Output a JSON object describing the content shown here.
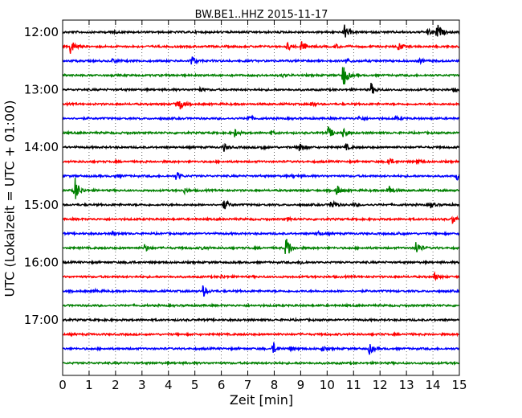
{
  "chart_data": {
    "type": "line",
    "title": "BW.BE1..HHZ 2015-11-17",
    "xlabel": "Zeit  [min]",
    "ylabel": "UTC (Lokalzeit = UTC + 01:00)",
    "xlim": [
      0,
      15
    ],
    "x_ticks": [
      "0",
      "1",
      "2",
      "3",
      "4",
      "5",
      "6",
      "7",
      "8",
      "9",
      "10",
      "11",
      "12",
      "13",
      "14",
      "15"
    ],
    "y_ticks": [
      "12:00",
      "13:00",
      "14:00",
      "15:00",
      "16:00",
      "17:00"
    ],
    "grid": "vertical dotted",
    "row_interval_min": 15,
    "colors": [
      "#000000",
      "#ff0000",
      "#0000ff",
      "#008000"
    ],
    "series": [
      {
        "start": "12:00",
        "color": "#000000",
        "events": [
          {
            "t": 10.65,
            "amp": 10
          },
          {
            "t": 14.15,
            "amp": 12
          },
          {
            "t": 13.8,
            "amp": 4
          },
          {
            "t": 1.8,
            "amp": 2
          }
        ]
      },
      {
        "start": "12:15",
        "color": "#ff0000",
        "events": [
          {
            "t": 0.3,
            "amp": 11
          },
          {
            "t": 9.0,
            "amp": 9
          },
          {
            "t": 8.5,
            "amp": 5
          },
          {
            "t": 12.7,
            "amp": 6
          },
          {
            "t": 10.3,
            "amp": 3
          }
        ]
      },
      {
        "start": "12:30",
        "color": "#0000ff",
        "events": [
          {
            "t": 4.85,
            "amp": 8
          },
          {
            "t": 1.9,
            "amp": 4
          },
          {
            "t": 10.7,
            "amp": 4
          },
          {
            "t": 13.5,
            "amp": 3
          }
        ]
      },
      {
        "start": "12:45",
        "color": "#008000",
        "events": [
          {
            "t": 10.6,
            "amp": 18
          },
          {
            "t": 8.3,
            "amp": 2
          }
        ]
      },
      {
        "start": "13:00",
        "color": "#000000",
        "events": [
          {
            "t": 11.65,
            "amp": 9
          },
          {
            "t": 5.2,
            "amp": 2
          },
          {
            "t": 14.8,
            "amp": 3
          }
        ]
      },
      {
        "start": "13:15",
        "color": "#ff0000",
        "events": [
          {
            "t": 4.25,
            "amp": 7
          },
          {
            "t": 4.45,
            "amp": 6
          },
          {
            "t": 9.4,
            "amp": 3
          }
        ]
      },
      {
        "start": "13:30",
        "color": "#0000ff",
        "events": [
          {
            "t": 7.0,
            "amp": 4
          },
          {
            "t": 11.2,
            "amp": 3
          },
          {
            "t": 12.6,
            "amp": 2
          }
        ]
      },
      {
        "start": "13:45",
        "color": "#008000",
        "events": [
          {
            "t": 10.05,
            "amp": 8
          },
          {
            "t": 6.5,
            "amp": 5
          },
          {
            "t": 10.6,
            "amp": 6
          },
          {
            "t": 7.9,
            "amp": 2
          }
        ]
      },
      {
        "start": "14:00",
        "color": "#000000",
        "events": [
          {
            "t": 8.95,
            "amp": 9
          },
          {
            "t": 6.1,
            "amp": 5
          },
          {
            "t": 7.5,
            "amp": 3
          },
          {
            "t": 10.7,
            "amp": 4
          }
        ]
      },
      {
        "start": "14:15",
        "color": "#ff0000",
        "events": [
          {
            "t": 12.3,
            "amp": 7
          },
          {
            "t": 13.4,
            "amp": 3
          }
        ]
      },
      {
        "start": "14:30",
        "color": "#0000ff",
        "events": [
          {
            "t": 4.3,
            "amp": 6
          },
          {
            "t": 14.9,
            "amp": 5
          },
          {
            "t": 2.0,
            "amp": 2
          },
          {
            "t": 8.7,
            "amp": 2
          }
        ]
      },
      {
        "start": "14:45",
        "color": "#008000",
        "events": [
          {
            "t": 0.45,
            "amp": 20
          },
          {
            "t": 10.35,
            "amp": 8
          },
          {
            "t": 12.3,
            "amp": 8
          },
          {
            "t": 4.6,
            "amp": 3
          }
        ]
      },
      {
        "start": "15:00",
        "color": "#000000",
        "events": [
          {
            "t": 6.1,
            "amp": 8
          },
          {
            "t": 10.15,
            "amp": 8
          },
          {
            "t": 13.9,
            "amp": 4
          },
          {
            "t": 11.0,
            "amp": 2
          }
        ]
      },
      {
        "start": "15:15",
        "color": "#ff0000",
        "events": [
          {
            "t": 14.75,
            "amp": 6
          },
          {
            "t": 8.5,
            "amp": 2
          }
        ]
      },
      {
        "start": "15:30",
        "color": "#0000ff",
        "events": [
          {
            "t": 1.9,
            "amp": 3
          },
          {
            "t": 9.6,
            "amp": 4
          },
          {
            "t": 12.7,
            "amp": 2
          }
        ]
      },
      {
        "start": "15:45",
        "color": "#008000",
        "events": [
          {
            "t": 8.45,
            "amp": 18
          },
          {
            "t": 3.1,
            "amp": 5
          },
          {
            "t": 13.35,
            "amp": 10
          },
          {
            "t": 5.3,
            "amp": 2
          }
        ]
      },
      {
        "start": "16:00",
        "color": "#000000",
        "events": [
          {
            "t": 2.5,
            "amp": 2
          },
          {
            "t": 9.0,
            "amp": 2
          }
        ]
      },
      {
        "start": "16:15",
        "color": "#ff0000",
        "events": [
          {
            "t": 14.05,
            "amp": 5
          },
          {
            "t": 6.0,
            "amp": 2
          }
        ]
      },
      {
        "start": "16:30",
        "color": "#0000ff",
        "events": [
          {
            "t": 5.3,
            "amp": 8
          },
          {
            "t": 1.2,
            "amp": 2
          }
        ]
      },
      {
        "start": "16:45",
        "color": "#008000",
        "events": []
      },
      {
        "start": "17:00",
        "color": "#000000",
        "events": []
      },
      {
        "start": "17:15",
        "color": "#ff0000",
        "events": []
      },
      {
        "start": "17:30",
        "color": "#0000ff",
        "events": [
          {
            "t": 7.95,
            "amp": 8
          },
          {
            "t": 11.6,
            "amp": 7
          },
          {
            "t": 9.8,
            "amp": 3
          },
          {
            "t": 8.6,
            "amp": 3
          }
        ]
      },
      {
        "start": "17:45",
        "color": "#008000",
        "events": []
      }
    ]
  }
}
